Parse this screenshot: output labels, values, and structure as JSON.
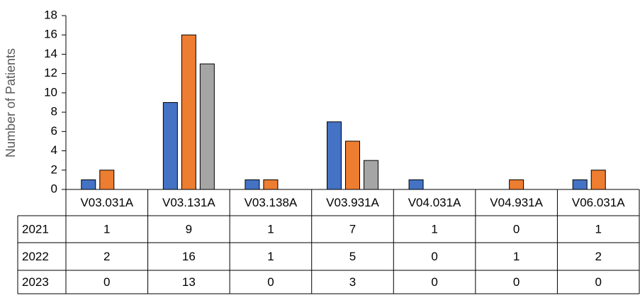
{
  "chart_data": {
    "type": "bar",
    "y_label": "Number of Patients",
    "categories": [
      "V03.031A",
      "V03.131A",
      "V03.138A",
      "V03.931A",
      "V04.031A",
      "V04.931A",
      "V06.031A"
    ],
    "series": [
      {
        "name": "2021",
        "color": "#4472c4",
        "values": [
          1,
          9,
          1,
          7,
          1,
          0,
          1
        ]
      },
      {
        "name": "2022",
        "color": "#ed7d31",
        "values": [
          2,
          16,
          1,
          5,
          0,
          1,
          2
        ]
      },
      {
        "name": "2023",
        "color": "#a5a5a5",
        "values": [
          0,
          13,
          0,
          3,
          0,
          0,
          0
        ]
      }
    ],
    "ylim": [
      0,
      18
    ],
    "yticks": [
      0,
      2,
      4,
      6,
      8,
      10,
      12,
      14,
      16,
      18
    ],
    "grid": false,
    "data_table": true
  }
}
